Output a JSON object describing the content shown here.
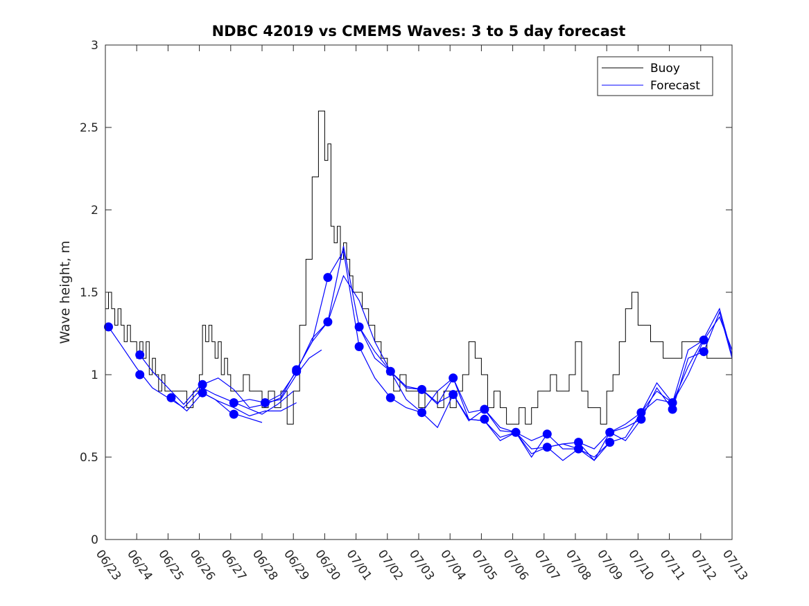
{
  "chart_data": {
    "type": "line",
    "title": "NDBC 42019 vs CMEMS Waves: 3 to 5 day forecast",
    "xlabel": "",
    "ylabel": "Wave height, m",
    "xlim": [
      "06/23",
      "07/13"
    ],
    "ylim": [
      0,
      3
    ],
    "x_tick_labels": [
      "06/23",
      "06/24",
      "06/25",
      "06/26",
      "06/27",
      "06/28",
      "06/29",
      "06/30",
      "07/01",
      "07/02",
      "07/03",
      "07/04",
      "07/05",
      "07/06",
      "07/07",
      "07/08",
      "07/09",
      "07/10",
      "07/11",
      "07/12",
      "07/13"
    ],
    "y_ticks": [
      0,
      0.5,
      1,
      1.5,
      2,
      2.5,
      3
    ],
    "y_tick_labels": [
      "0",
      "0.5",
      "1",
      "1.5",
      "2",
      "2.5",
      "3"
    ],
    "grid": false,
    "legend": {
      "position": "top-right",
      "entries": [
        {
          "label": "Buoy",
          "color": "#000000"
        },
        {
          "label": "Forecast",
          "color": "#0000ff"
        }
      ]
    },
    "colors": {
      "buoy": "#000000",
      "forecast": "#0000ff"
    },
    "buoy": {
      "name": "Buoy",
      "x_days": [
        0,
        0.1,
        0.2,
        0.3,
        0.4,
        0.5,
        0.6,
        0.7,
        0.8,
        0.9,
        1.0,
        1.1,
        1.2,
        1.3,
        1.4,
        1.5,
        1.6,
        1.7,
        1.8,
        1.9,
        2.0,
        2.2,
        2.4,
        2.6,
        2.8,
        3.0,
        3.1,
        3.2,
        3.3,
        3.4,
        3.5,
        3.6,
        3.7,
        3.8,
        3.9,
        4.0,
        4.2,
        4.4,
        4.6,
        4.8,
        5.0,
        5.2,
        5.4,
        5.6,
        5.8,
        6.0,
        6.2,
        6.4,
        6.6,
        6.8,
        7.0,
        7.1,
        7.2,
        7.3,
        7.4,
        7.5,
        7.6,
        7.7,
        7.8,
        7.9,
        8.0,
        8.2,
        8.4,
        8.6,
        8.8,
        9.0,
        9.2,
        9.4,
        9.6,
        9.8,
        10.0,
        10.2,
        10.4,
        10.6,
        10.8,
        11.0,
        11.2,
        11.4,
        11.6,
        11.8,
        12.0,
        12.2,
        12.4,
        12.6,
        12.8,
        13.0,
        13.2,
        13.4,
        13.6,
        13.8,
        14.0,
        14.2,
        14.4,
        14.6,
        14.8,
        15.0,
        15.2,
        15.4,
        15.6,
        15.8,
        16.0,
        16.2,
        16.4,
        16.6,
        16.8,
        17.0,
        17.2,
        17.4,
        17.6,
        17.8,
        18.0,
        18.2,
        18.4,
        18.6,
        18.8,
        19.0,
        19.2,
        19.4,
        19.6,
        19.8,
        20.0
      ],
      "values": [
        1.4,
        1.5,
        1.4,
        1.3,
        1.4,
        1.3,
        1.2,
        1.3,
        1.2,
        1.2,
        1.1,
        1.2,
        1.1,
        1.2,
        1.0,
        1.1,
        1.0,
        0.9,
        1.0,
        0.9,
        0.9,
        0.9,
        0.9,
        0.8,
        0.9,
        1.0,
        1.3,
        1.2,
        1.3,
        1.2,
        1.1,
        1.2,
        1.0,
        1.1,
        1.0,
        0.9,
        0.9,
        1.0,
        0.9,
        0.9,
        0.8,
        0.9,
        0.8,
        0.9,
        0.7,
        0.9,
        1.3,
        1.7,
        2.2,
        2.6,
        2.3,
        2.4,
        1.9,
        1.8,
        1.9,
        1.7,
        1.8,
        1.7,
        1.6,
        1.5,
        1.5,
        1.4,
        1.3,
        1.2,
        1.1,
        1.0,
        0.9,
        1.0,
        0.9,
        0.9,
        0.8,
        0.9,
        0.9,
        0.8,
        0.9,
        0.8,
        0.9,
        1.0,
        1.2,
        1.1,
        1.0,
        0.8,
        0.9,
        0.8,
        0.7,
        0.7,
        0.8,
        0.7,
        0.8,
        0.9,
        0.9,
        1.0,
        0.9,
        0.9,
        1.0,
        1.2,
        0.9,
        0.8,
        0.8,
        0.7,
        0.9,
        1.0,
        1.2,
        1.4,
        1.5,
        1.3,
        1.3,
        1.2,
        1.2,
        1.1,
        1.1,
        1.1,
        1.2,
        1.2,
        1.2,
        1.2,
        1.1,
        1.1,
        1.1,
        1.1,
        1.1
      ]
    },
    "forecast_runs": [
      {
        "x_days": [
          0.1,
          0.5,
          1.0,
          1.5,
          2.0,
          2.5,
          3.0,
          3.5,
          4.0,
          4.5,
          5.0
        ],
        "values": [
          1.29,
          1.18,
          1.04,
          0.92,
          0.86,
          0.8,
          0.9,
          0.85,
          0.77,
          0.74,
          0.71
        ]
      },
      {
        "x_days": [
          1.1,
          1.5,
          2.0,
          2.5,
          3.0,
          3.5,
          4.0,
          4.5,
          5.0,
          5.5,
          6.0
        ],
        "values": [
          1.12,
          1.02,
          0.92,
          0.82,
          0.93,
          0.88,
          0.84,
          0.8,
          0.76,
          0.82,
          0.9
        ]
      },
      {
        "x_days": [
          2.1,
          2.6,
          3.1,
          3.6,
          4.1,
          4.6,
          5.1,
          5.6,
          6.1
        ],
        "values": [
          0.86,
          0.78,
          0.89,
          0.84,
          0.8,
          0.75,
          0.78,
          0.78,
          0.83
        ]
      },
      {
        "x_days": [
          3.1,
          3.6,
          4.1,
          4.6,
          5.1,
          5.6,
          6.1,
          6.6,
          7.1
        ],
        "values": [
          0.94,
          0.98,
          0.91,
          0.8,
          0.82,
          0.86,
          1.03,
          1.2,
          1.59
        ]
      },
      {
        "x_days": [
          4.1,
          4.6,
          5.1,
          5.6,
          6.1,
          6.5,
          6.9
        ],
        "values": [
          0.83,
          0.85,
          0.83,
          0.85,
          1.0,
          1.1,
          1.15
        ]
      },
      {
        "x_days": [
          5.1,
          5.6,
          6.1,
          6.6,
          7.1,
          7.6,
          8.1,
          8.6,
          9.1
        ],
        "values": [
          0.83,
          0.88,
          1.02,
          1.22,
          1.32,
          1.6,
          1.45,
          1.2,
          1.02
        ]
      },
      {
        "x_days": [
          6.1,
          6.6,
          7.1,
          7.6,
          8.1,
          8.6,
          9.1,
          9.6,
          10.1
        ],
        "values": [
          1.03,
          1.2,
          1.32,
          1.78,
          1.29,
          1.14,
          1.02,
          0.93,
          0.91
        ]
      },
      {
        "x_days": [
          7.1,
          7.6,
          8.1,
          8.6,
          9.1,
          9.6,
          10.1,
          10.6,
          11.1
        ],
        "values": [
          1.59,
          1.75,
          1.17,
          0.98,
          0.86,
          0.8,
          0.77,
          0.9,
          0.98
        ]
      },
      {
        "x_days": [
          8.1,
          8.6,
          9.1,
          9.6,
          10.1,
          10.6,
          11.1,
          11.6,
          12.1
        ],
        "values": [
          1.29,
          1.1,
          1.02,
          0.85,
          0.77,
          0.68,
          0.88,
          0.72,
          0.79
        ]
      },
      {
        "x_days": [
          9.1,
          9.6,
          10.1,
          10.6,
          11.1,
          11.6,
          12.1,
          12.6,
          13.1
        ],
        "values": [
          1.02,
          0.92,
          0.91,
          0.83,
          0.88,
          0.73,
          0.72,
          0.62,
          0.65
        ]
      },
      {
        "x_days": [
          10.1,
          10.6,
          11.1,
          11.6,
          12.1,
          12.6,
          13.1,
          13.6,
          14.1
        ],
        "values": [
          0.91,
          0.82,
          0.98,
          0.73,
          0.72,
          0.6,
          0.65,
          0.5,
          0.64
        ]
      },
      {
        "x_days": [
          11.1,
          11.6,
          12.1,
          12.6,
          13.1,
          13.6,
          14.1,
          14.6,
          15.1
        ],
        "values": [
          0.98,
          0.77,
          0.79,
          0.66,
          0.65,
          0.52,
          0.56,
          0.48,
          0.55
        ]
      },
      {
        "x_days": [
          12.1,
          12.6,
          13.1,
          13.6,
          14.1,
          14.6,
          15.1,
          15.6,
          16.1
        ],
        "values": [
          0.79,
          0.68,
          0.65,
          0.55,
          0.56,
          0.58,
          0.59,
          0.48,
          0.59
        ]
      },
      {
        "x_days": [
          13.1,
          13.6,
          14.1,
          14.6,
          15.1,
          15.6,
          16.1,
          16.6,
          17.1
        ],
        "values": [
          0.65,
          0.6,
          0.64,
          0.55,
          0.55,
          0.48,
          0.65,
          0.6,
          0.73
        ]
      },
      {
        "x_days": [
          14.1,
          14.6,
          15.1,
          15.6,
          16.1,
          16.6,
          17.1,
          17.6,
          18.1
        ],
        "values": [
          0.56,
          0.58,
          0.55,
          0.5,
          0.59,
          0.62,
          0.77,
          0.95,
          0.83
        ]
      },
      {
        "x_days": [
          15.1,
          15.6,
          16.1,
          16.6,
          17.1,
          17.6,
          18.1,
          18.6,
          19.1
        ],
        "values": [
          0.59,
          0.55,
          0.65,
          0.7,
          0.77,
          0.9,
          0.83,
          1.15,
          1.21
        ]
      },
      {
        "x_days": [
          16.1,
          16.6,
          17.1,
          17.6,
          18.1,
          18.6,
          19.1,
          19.6,
          20.0
        ],
        "values": [
          0.65,
          0.68,
          0.73,
          0.92,
          0.79,
          1.1,
          1.14,
          1.38,
          1.1
        ]
      },
      {
        "x_days": [
          17.1,
          17.6,
          18.1,
          18.6,
          19.1,
          19.6,
          20.0
        ],
        "values": [
          0.77,
          0.85,
          0.83,
          1.0,
          1.21,
          1.35,
          1.15
        ]
      },
      {
        "x_days": [
          18.1,
          18.6,
          19.1,
          19.6,
          20.0
        ],
        "values": [
          0.83,
          1.05,
          1.22,
          1.4,
          1.12
        ]
      }
    ],
    "forecast_start_points": [
      {
        "x": 0.1,
        "y": 1.29
      },
      {
        "x": 1.1,
        "y": 1.12
      },
      {
        "x": 1.1,
        "y": 1.0
      },
      {
        "x": 2.1,
        "y": 0.86
      },
      {
        "x": 3.1,
        "y": 0.94
      },
      {
        "x": 3.1,
        "y": 0.89
      },
      {
        "x": 4.1,
        "y": 0.83
      },
      {
        "x": 4.1,
        "y": 0.76
      },
      {
        "x": 5.1,
        "y": 0.83
      },
      {
        "x": 6.1,
        "y": 1.03
      },
      {
        "x": 6.1,
        "y": 1.02
      },
      {
        "x": 7.1,
        "y": 1.59
      },
      {
        "x": 7.1,
        "y": 1.32
      },
      {
        "x": 8.1,
        "y": 1.29
      },
      {
        "x": 8.1,
        "y": 1.17
      },
      {
        "x": 9.1,
        "y": 1.02
      },
      {
        "x": 9.1,
        "y": 0.86
      },
      {
        "x": 10.1,
        "y": 0.91
      },
      {
        "x": 10.1,
        "y": 0.77
      },
      {
        "x": 11.1,
        "y": 0.98
      },
      {
        "x": 11.1,
        "y": 0.88
      },
      {
        "x": 12.1,
        "y": 0.79
      },
      {
        "x": 12.1,
        "y": 0.73
      },
      {
        "x": 13.1,
        "y": 0.65
      },
      {
        "x": 14.1,
        "y": 0.64
      },
      {
        "x": 14.1,
        "y": 0.56
      },
      {
        "x": 15.1,
        "y": 0.59
      },
      {
        "x": 15.1,
        "y": 0.55
      },
      {
        "x": 16.1,
        "y": 0.65
      },
      {
        "x": 16.1,
        "y": 0.59
      },
      {
        "x": 17.1,
        "y": 0.77
      },
      {
        "x": 17.1,
        "y": 0.73
      },
      {
        "x": 18.1,
        "y": 0.83
      },
      {
        "x": 18.1,
        "y": 0.79
      },
      {
        "x": 19.1,
        "y": 1.21
      },
      {
        "x": 19.1,
        "y": 1.14
      }
    ]
  }
}
